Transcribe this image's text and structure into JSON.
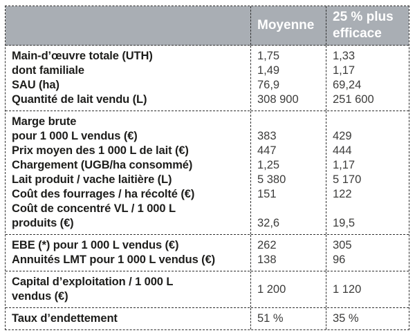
{
  "colors": {
    "header_bg": "#a9aeb4",
    "header_text": "#ffffff",
    "border": "#2e2e2e",
    "label_text": "#1d1d1b",
    "value_text": "#3c3c3b"
  },
  "table": {
    "header": {
      "corner": "",
      "moyenne": "Moyenne",
      "efficace": "25 % plus efficace"
    },
    "sections": [
      {
        "rows": [
          {
            "label_lines": [
              "Main-d’œuvre totale (UTH)"
            ],
            "moyenne": "1,75",
            "efficace": "1,33"
          },
          {
            "label_lines": [
              "dont familiale"
            ],
            "moyenne": "1,49",
            "efficace": "1,17"
          },
          {
            "label_lines": [
              "SAU (ha)"
            ],
            "moyenne": "76,9",
            "efficace": "69,24"
          },
          {
            "label_lines": [
              "Quantité de lait vendu (L)"
            ],
            "moyenne": "308 900",
            "efficace": "251 600"
          }
        ]
      },
      {
        "rows": [
          {
            "label_lines": [
              "Marge brute",
              "pour 1 000 L vendus (€)"
            ],
            "moyenne": "383",
            "efficace": "429",
            "value_align": "last"
          },
          {
            "label_lines": [
              "Prix moyen des 1 000 L de lait (€)"
            ],
            "moyenne": "447",
            "efficace": "444"
          },
          {
            "label_lines": [
              "Chargement (UGB/ha consommé)"
            ],
            "moyenne": "1,25",
            "efficace": "1,17"
          },
          {
            "label_lines": [
              "Lait produit / vache laitière (L)"
            ],
            "moyenne": "5 380",
            "efficace": "5 170"
          },
          {
            "label_lines": [
              "Coût des fourrages / ha récolté (€)"
            ],
            "moyenne": "151",
            "efficace": "122"
          },
          {
            "label_lines": [
              "Coût de concentré VL / 1 000 L",
              "produits (€)"
            ],
            "moyenne": "32,6",
            "efficace": "19,5",
            "value_align": "last"
          }
        ]
      },
      {
        "rows": [
          {
            "label_lines": [
              "EBE (*) pour 1 000 L vendus (€)"
            ],
            "moyenne": "262",
            "efficace": "305"
          },
          {
            "label_lines": [
              "Annuités LMT pour 1 000 L vendus (€)"
            ],
            "moyenne": "138",
            "efficace": "96"
          }
        ]
      },
      {
        "rows": [
          {
            "label_lines": [
              "Capital d’exploitation / 1 000 L",
              "vendus (€)"
            ],
            "moyenne": "1 200",
            "efficace": "1 120",
            "value_align": "center"
          }
        ]
      },
      {
        "rows": [
          {
            "label_lines": [
              "Taux d’endettement"
            ],
            "moyenne": "51 %",
            "efficace": "35 %"
          }
        ]
      }
    ]
  }
}
